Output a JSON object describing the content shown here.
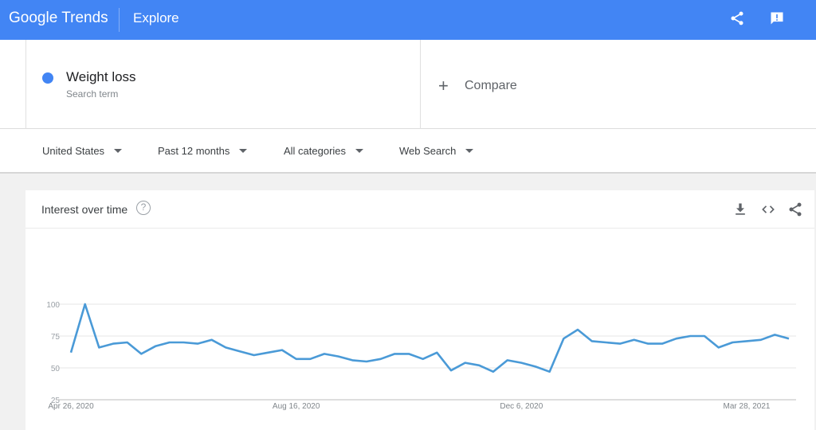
{
  "header": {
    "logo_google": "Google",
    "logo_trends": "Trends",
    "section": "Explore",
    "share_icon": "share-icon",
    "feedback_icon": "feedback-icon"
  },
  "search": {
    "term": "Weight loss",
    "term_type": "Search term",
    "term_color": "#4285f4",
    "compare_label": "Compare"
  },
  "filters": {
    "region": "United States",
    "period": "Past 12 months",
    "category": "All categories",
    "property": "Web Search"
  },
  "card": {
    "title": "Interest over time",
    "help_icon": "help-icon",
    "actions": [
      "download-icon",
      "embed-icon",
      "share-icon"
    ]
  },
  "chart_data": {
    "type": "line",
    "title": "",
    "series": [
      {
        "color": "#4a9ad7",
        "x": [
          "2020-04-26",
          "2020-05-03",
          "2020-05-10",
          "2020-05-17",
          "2020-05-24",
          "2020-05-31",
          "2020-06-07",
          "2020-06-14",
          "2020-06-21",
          "2020-06-28",
          "2020-07-05",
          "2020-07-12",
          "2020-07-19",
          "2020-07-26",
          "2020-08-02",
          "2020-08-09",
          "2020-08-16",
          "2020-08-23",
          "2020-08-30",
          "2020-09-06",
          "2020-09-13",
          "2020-09-20",
          "2020-09-27",
          "2020-10-04",
          "2020-10-11",
          "2020-10-18",
          "2020-10-25",
          "2020-11-01",
          "2020-11-08",
          "2020-11-15",
          "2020-11-22",
          "2020-11-29",
          "2020-12-06",
          "2020-12-13",
          "2020-12-20",
          "2020-12-27",
          "2021-01-03",
          "2021-01-10",
          "2021-01-17",
          "2021-01-24",
          "2021-01-31",
          "2021-02-07",
          "2021-02-14",
          "2021-02-21",
          "2021-02-28",
          "2021-03-07",
          "2021-03-14",
          "2021-03-21",
          "2021-03-28",
          "2021-04-04",
          "2021-04-11",
          "2021-04-18"
        ],
        "values": [
          62,
          100,
          66,
          69,
          70,
          61,
          67,
          70,
          70,
          69,
          72,
          66,
          63,
          60,
          62,
          64,
          57,
          57,
          61,
          59,
          56,
          55,
          57,
          61,
          61,
          57,
          62,
          48,
          54,
          52,
          47,
          56,
          54,
          51,
          47,
          73,
          80,
          71,
          70,
          69,
          72,
          69,
          69,
          73,
          75,
          75,
          66,
          70,
          71,
          72,
          76,
          73
        ]
      }
    ],
    "x_tick_labels": [
      "Apr 26, 2020",
      "Aug 16, 2020",
      "Dec 6, 2020",
      "Mar 28, 2021"
    ],
    "y_ticks": [
      25,
      50,
      75,
      100
    ],
    "ylim": [
      0,
      100
    ],
    "grid": true,
    "legend": "none"
  }
}
